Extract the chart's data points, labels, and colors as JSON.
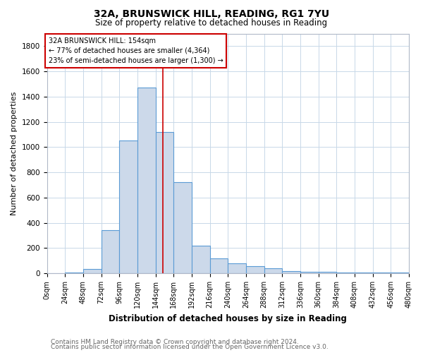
{
  "title": "32A, BRUNSWICK HILL, READING, RG1 7YU",
  "subtitle": "Size of property relative to detached houses in Reading",
  "xlabel": "Distribution of detached houses by size in Reading",
  "ylabel": "Number of detached properties",
  "footer1": "Contains HM Land Registry data © Crown copyright and database right 2024.",
  "footer2": "Contains public sector information licensed under the Open Government Licence v3.0.",
  "bin_labels": [
    "0sqm",
    "24sqm",
    "48sqm",
    "72sqm",
    "96sqm",
    "120sqm",
    "144sqm",
    "168sqm",
    "192sqm",
    "216sqm",
    "240sqm",
    "264sqm",
    "288sqm",
    "312sqm",
    "336sqm",
    "360sqm",
    "384sqm",
    "408sqm",
    "432sqm",
    "456sqm",
    "480sqm"
  ],
  "bin_edges": [
    0,
    24,
    48,
    72,
    96,
    120,
    144,
    168,
    192,
    216,
    240,
    264,
    288,
    312,
    336,
    360,
    384,
    408,
    432,
    456,
    480
  ],
  "bar_heights": [
    0,
    5,
    35,
    340,
    1050,
    1470,
    1120,
    720,
    220,
    120,
    80,
    55,
    40,
    20,
    10,
    10,
    5,
    5,
    5,
    5
  ],
  "bar_facecolor": "#ccd9ea",
  "bar_edgecolor": "#5b9bd5",
  "bar_linewidth": 0.8,
  "vline_x": 154,
  "vline_color": "#cc0000",
  "vline_linewidth": 1.2,
  "annotation_line1": "32A BRUNSWICK HILL: 154sqm",
  "annotation_line2": "← 77% of detached houses are smaller (4,364)",
  "annotation_line3": "23% of semi-detached houses are larger (1,300) →",
  "box_edgecolor": "#cc0000",
  "box_facecolor": "#ffffff",
  "background_color": "#ffffff",
  "grid_color": "#c8d8e8",
  "ylim": [
    0,
    1900
  ],
  "yticks": [
    0,
    200,
    400,
    600,
    800,
    1000,
    1200,
    1400,
    1600,
    1800
  ]
}
